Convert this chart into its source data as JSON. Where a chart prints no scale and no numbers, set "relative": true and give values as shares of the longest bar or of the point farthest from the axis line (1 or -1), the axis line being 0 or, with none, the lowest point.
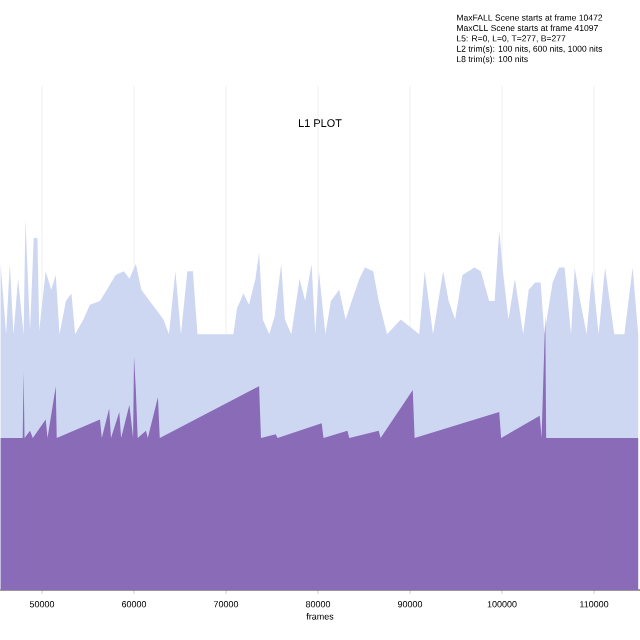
{
  "chart_data": {
    "type": "area",
    "title": "L1 PLOT",
    "xlabel": "frames",
    "relative": true,
    "grid": "x",
    "xlim": [
      45435,
      115000
    ],
    "xticks": [
      50000,
      60000,
      70000,
      80000,
      90000,
      100000,
      110000
    ],
    "annotations": [
      "MaxFALL Scene starts at frame 10472",
      "MaxCLL Scene starts at frame 41097",
      "L5: R=0, L=0, T=277, B=277",
      "L2 trim(s): 100 nits, 600 nits, 1000 nits",
      "L8 trim(s): 100 nits"
    ],
    "series": [
      {
        "color": "#ced7f2",
        "x": [
          45500,
          46100,
          46500,
          46900,
          47400,
          48000,
          48200,
          48700,
          49100,
          49500,
          49700,
          50400,
          51000,
          51500,
          51900,
          52600,
          53200,
          53600,
          54500,
          55200,
          56300,
          57300,
          58000,
          58900,
          59500,
          60200,
          60800,
          61700,
          62300,
          63200,
          63800,
          64500,
          65100,
          65800,
          66400,
          66900,
          68800,
          70800,
          71200,
          71900,
          72500,
          73200,
          73600,
          74000,
          74700,
          75300,
          76000,
          76400,
          77100,
          78000,
          78600,
          79300,
          79700,
          80100,
          80800,
          81400,
          82300,
          83000,
          83800,
          84500,
          85100,
          86000,
          86600,
          87500,
          89000,
          91000,
          91600,
          92500,
          93600,
          94200,
          94900,
          95700,
          97000,
          97700,
          98600,
          99200,
          99700,
          100100,
          100700,
          101400,
          102300,
          102900,
          103600,
          104200,
          104600,
          105500,
          106200,
          106800,
          107500,
          107900,
          108500,
          109200,
          109800,
          110500,
          111200,
          112200,
          113300,
          114200,
          114800
        ],
        "values": [
          0.88,
          0.69,
          0.88,
          0.69,
          0.84,
          0.69,
          1.0,
          0.7,
          0.95,
          0.95,
          0.7,
          0.86,
          0.81,
          0.85,
          0.69,
          0.78,
          0.8,
          0.69,
          0.73,
          0.77,
          0.78,
          0.82,
          0.85,
          0.86,
          0.84,
          0.88,
          0.81,
          0.78,
          0.76,
          0.73,
          0.69,
          0.86,
          0.69,
          0.86,
          0.86,
          0.69,
          0.69,
          0.69,
          0.76,
          0.8,
          0.77,
          0.84,
          0.91,
          0.73,
          0.69,
          0.74,
          0.88,
          0.73,
          0.69,
          0.84,
          0.78,
          0.88,
          0.69,
          0.86,
          0.69,
          0.78,
          0.81,
          0.73,
          0.79,
          0.84,
          0.87,
          0.86,
          0.78,
          0.69,
          0.73,
          0.69,
          0.86,
          0.69,
          0.86,
          0.78,
          0.73,
          0.85,
          0.87,
          0.86,
          0.78,
          0.78,
          0.97,
          0.86,
          0.73,
          0.84,
          0.69,
          0.81,
          0.83,
          0.83,
          0.69,
          0.83,
          0.87,
          0.87,
          0.69,
          0.87,
          0.78,
          0.69,
          0.86,
          0.69,
          0.87,
          0.69,
          0.69,
          0.87,
          0.69
        ]
      },
      {
        "color": "#8a6bb8",
        "x": [
          45500,
          47900,
          48000,
          48100,
          48700,
          49000,
          50400,
          50600,
          51500,
          51600,
          56300,
          56500,
          57300,
          57500,
          58400,
          58600,
          59500,
          59900,
          60000,
          60200,
          60400,
          61300,
          61500,
          62600,
          62800,
          73600,
          73800,
          75400,
          75600,
          80400,
          80600,
          83200,
          83400,
          86600,
          86800,
          90300,
          90500,
          99700,
          99900,
          104100,
          104300,
          104700,
          104800,
          114800
        ],
        "values": [
          0.41,
          0.41,
          0.59,
          0.41,
          0.43,
          0.41,
          0.46,
          0.41,
          0.55,
          0.41,
          0.46,
          0.41,
          0.49,
          0.41,
          0.48,
          0.41,
          0.5,
          0.41,
          0.63,
          0.54,
          0.41,
          0.43,
          0.41,
          0.52,
          0.41,
          0.55,
          0.41,
          0.42,
          0.41,
          0.45,
          0.41,
          0.43,
          0.41,
          0.43,
          0.41,
          0.54,
          0.41,
          0.48,
          0.41,
          0.47,
          0.41,
          0.74,
          0.41,
          0.41
        ]
      }
    ]
  }
}
